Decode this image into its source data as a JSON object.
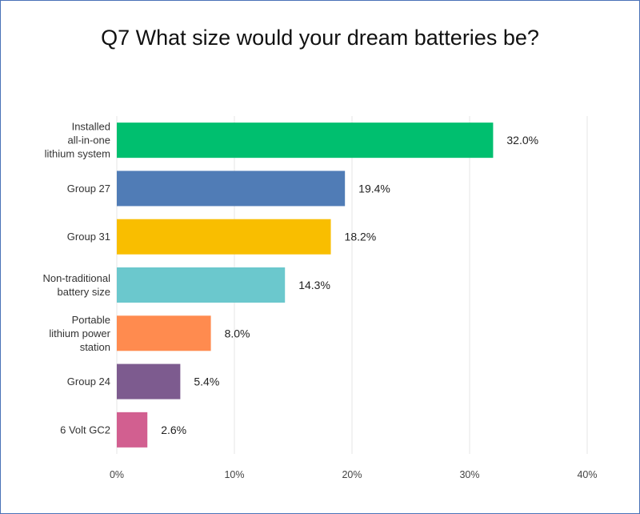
{
  "chart_data": {
    "type": "bar",
    "orientation": "horizontal",
    "title": "Q7 What size would your dream batteries be?",
    "categories": [
      "Installed all-in-one lithium system",
      "Group 27",
      "Group 31",
      "Non-traditional battery size",
      "Portable lithium power station",
      "Group 24",
      "6 Volt GC2"
    ],
    "category_lines": [
      [
        "Installed",
        "all-in-one",
        "lithium system"
      ],
      [
        "Group 27"
      ],
      [
        "Group 31"
      ],
      [
        "Non-traditional",
        "battery size"
      ],
      [
        "Portable",
        "lithium power",
        "station"
      ],
      [
        "Group 24"
      ],
      [
        "6 Volt GC2"
      ]
    ],
    "values": [
      32.0,
      19.4,
      18.2,
      14.3,
      8.0,
      5.4,
      2.6
    ],
    "value_labels": [
      "32.0%",
      "19.4%",
      "18.2%",
      "14.3%",
      "8.0%",
      "5.4%",
      "2.6%"
    ],
    "colors": [
      "#00bf6f",
      "#507cb6",
      "#f9be00",
      "#6bc8cd",
      "#ff8b4f",
      "#7d5b8f",
      "#d25f90"
    ],
    "xlim": [
      0,
      40
    ],
    "xticks": [
      0,
      10,
      20,
      30,
      40
    ],
    "xtick_labels": [
      "0%",
      "10%",
      "20%",
      "30%",
      "40%"
    ],
    "grid": "vertical"
  }
}
